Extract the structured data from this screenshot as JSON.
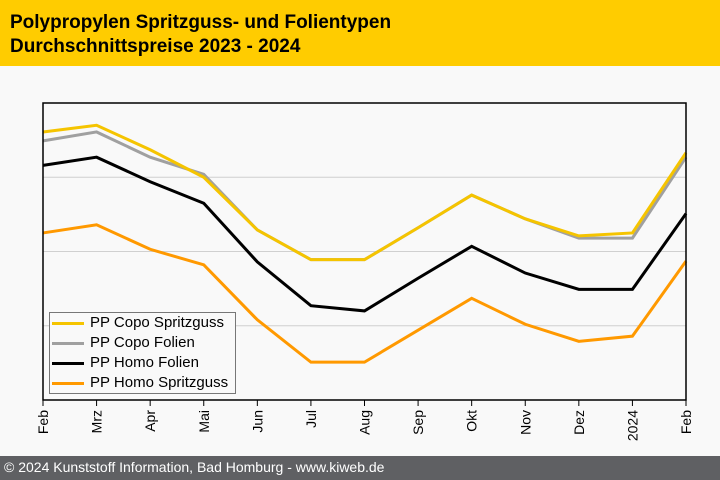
{
  "header": {
    "title_line1": "Polypropylen Spritzguss- und Folientypen",
    "title_line2": "Durchschnittspreise 2023 - 2024"
  },
  "footer": {
    "text": "© 2024 Kunststoff Information, Bad Homburg - www.kiweb.de"
  },
  "colors": {
    "header_bg": "#ffcc00",
    "footer_bg": "#5f6063",
    "copo_spritzguss": "#f5c400",
    "copo_folien": "#a0a0a0",
    "homo_folien": "#000000",
    "homo_spritzguss": "#ff9900"
  },
  "chart_data": {
    "type": "line",
    "title": "Polypropylen Spritzguss- und Folientypen Durchschnittspreise 2023 - 2024",
    "xlabel": "",
    "ylabel": "",
    "y_note": "no y-axis tick labels shown; values are relative index estimated from gridlines (4 equal bands)",
    "ylim": [
      0,
      4
    ],
    "grid": true,
    "gridlines_y": [
      1,
      2,
      3
    ],
    "legend_position": "bottom-left",
    "x": [
      "Feb",
      "Mrz",
      "Apr",
      "Mai",
      "Jun",
      "Jul",
      "Aug",
      "Sep",
      "Okt",
      "Nov",
      "Dez",
      "2024",
      "Feb"
    ],
    "series": [
      {
        "name": "PP Copo Spritzguss",
        "color": "#f5c400",
        "values": [
          3.61,
          3.7,
          3.37,
          3.0,
          2.29,
          1.89,
          1.89,
          2.32,
          2.76,
          2.44,
          2.21,
          2.25,
          3.33
        ]
      },
      {
        "name": "PP Copo Folien",
        "color": "#a0a0a0",
        "values": [
          3.49,
          3.61,
          3.27,
          3.04,
          2.29,
          1.89,
          1.89,
          2.32,
          2.76,
          2.44,
          2.18,
          2.18,
          3.27
        ]
      },
      {
        "name": "PP Homo Folien",
        "color": "#000000",
        "values": [
          3.16,
          3.27,
          2.94,
          2.65,
          1.86,
          1.27,
          1.2,
          1.64,
          2.07,
          1.71,
          1.49,
          1.49,
          2.51
        ]
      },
      {
        "name": "PP Homo Spritzguss",
        "color": "#ff9900",
        "values": [
          2.25,
          2.36,
          2.03,
          1.82,
          1.08,
          0.51,
          0.51,
          0.94,
          1.37,
          1.02,
          0.79,
          0.86,
          1.87
        ]
      }
    ]
  }
}
